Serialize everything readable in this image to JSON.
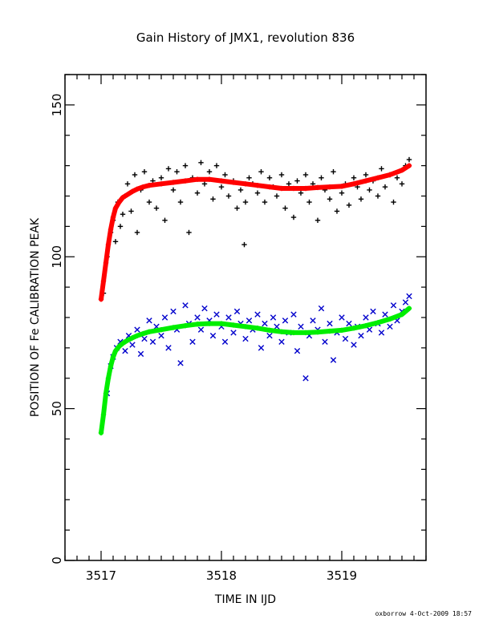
{
  "chart_data": {
    "type": "scatter",
    "title": "Gain History of JMX1, revolution 836",
    "xlabel": "TIME IN IJD",
    "ylabel": "POSITION OF Fe CALIBRATION PEAK",
    "xlim": [
      3516.7,
      3519.7
    ],
    "ylim": [
      0,
      160
    ],
    "xticks": [
      3517,
      3518,
      3519
    ],
    "yticks": [
      0,
      50,
      100,
      150
    ],
    "grid": false,
    "legend": "none",
    "series": [
      {
        "marker": "plus",
        "color": "#000000",
        "x": [
          3517.02,
          3517.05,
          3517.08,
          3517.1,
          3517.12,
          3517.14,
          3517.16,
          3517.18,
          3517.2,
          3517.22,
          3517.25,
          3517.28,
          3517.3,
          3517.33,
          3517.36,
          3517.4,
          3517.43,
          3517.46,
          3517.5,
          3517.53,
          3517.56,
          3517.6,
          3517.63,
          3517.66,
          3517.7,
          3517.73,
          3517.76,
          3517.8,
          3517.83,
          3517.86,
          3517.9,
          3517.93,
          3517.96,
          3518.0,
          3518.03,
          3518.06,
          3518.1,
          3518.13,
          3518.16,
          3518.19,
          3518.2,
          3518.23,
          3518.26,
          3518.3,
          3518.33,
          3518.36,
          3518.4,
          3518.43,
          3518.46,
          3518.5,
          3518.53,
          3518.56,
          3518.6,
          3518.63,
          3518.66,
          3518.7,
          3518.73,
          3518.76,
          3518.8,
          3518.83,
          3518.86,
          3518.9,
          3518.93,
          3518.96,
          3519.0,
          3519.03,
          3519.06,
          3519.1,
          3519.13,
          3519.16,
          3519.2,
          3519.23,
          3519.26,
          3519.3,
          3519.33,
          3519.36,
          3519.4,
          3519.43,
          3519.46,
          3519.5,
          3519.53,
          3519.56
        ],
        "values": [
          88,
          100,
          108,
          112,
          105,
          118,
          110,
          114,
          120,
          124,
          115,
          127,
          108,
          122,
          128,
          118,
          125,
          116,
          126,
          112,
          129,
          122,
          128,
          118,
          130,
          108,
          126,
          121,
          131,
          124,
          128,
          119,
          130,
          123,
          127,
          120,
          125,
          116,
          122,
          104,
          118,
          126,
          124,
          121,
          128,
          118,
          126,
          123,
          120,
          127,
          116,
          124,
          113,
          125,
          121,
          127,
          118,
          124,
          112,
          126,
          122,
          119,
          128,
          115,
          121,
          124,
          117,
          126,
          123,
          119,
          127,
          122,
          125,
          120,
          129,
          123,
          127,
          118,
          126,
          124,
          130,
          132
        ]
      },
      {
        "marker": "plus",
        "color": "#ff0000",
        "x": [
          3517.0,
          3517.02,
          3517.04,
          3517.06,
          3517.08,
          3517.1,
          3517.12,
          3517.15,
          3517.18,
          3517.22,
          3517.26,
          3517.3,
          3517.35,
          3517.4,
          3517.5,
          3517.6,
          3517.7,
          3517.8,
          3517.9,
          3518.0,
          3518.1,
          3518.2,
          3518.3,
          3518.4,
          3518.5,
          3518.6,
          3518.7,
          3518.8,
          3518.9,
          3519.0,
          3519.1,
          3519.2,
          3519.3,
          3519.4,
          3519.5,
          3519.56
        ],
        "values": [
          86,
          92,
          98,
          104,
          109,
          113,
          116,
          118,
          119.5,
          120.5,
          121.5,
          122.3,
          123,
          123.5,
          124,
          124.5,
          125,
          125.5,
          125.5,
          125,
          124.5,
          124,
          123.5,
          123,
          122.5,
          122.5,
          122.5,
          122.8,
          123,
          123.2,
          124,
          125,
          126,
          127,
          128.5,
          130
        ]
      },
      {
        "marker": "cross",
        "color": "#0000cc",
        "x": [
          3517.05,
          3517.08,
          3517.1,
          3517.13,
          3517.16,
          3517.2,
          3517.23,
          3517.26,
          3517.3,
          3517.33,
          3517.36,
          3517.4,
          3517.43,
          3517.46,
          3517.5,
          3517.53,
          3517.56,
          3517.6,
          3517.63,
          3517.66,
          3517.7,
          3517.73,
          3517.76,
          3517.8,
          3517.83,
          3517.86,
          3517.9,
          3517.93,
          3517.96,
          3518.0,
          3518.03,
          3518.06,
          3518.1,
          3518.13,
          3518.16,
          3518.2,
          3518.23,
          3518.26,
          3518.3,
          3518.33,
          3518.36,
          3518.4,
          3518.43,
          3518.46,
          3518.5,
          3518.53,
          3518.56,
          3518.6,
          3518.63,
          3518.66,
          3518.7,
          3518.73,
          3518.76,
          3518.8,
          3518.83,
          3518.86,
          3518.9,
          3518.93,
          3518.96,
          3519.0,
          3519.03,
          3519.06,
          3519.1,
          3519.13,
          3519.16,
          3519.2,
          3519.23,
          3519.26,
          3519.3,
          3519.33,
          3519.36,
          3519.4,
          3519.43,
          3519.46,
          3519.5,
          3519.53,
          3519.56
        ],
        "values": [
          55,
          64,
          67,
          70,
          72,
          69,
          74,
          71,
          76,
          68,
          73,
          79,
          72,
          77,
          74,
          80,
          70,
          82,
          76,
          65,
          84,
          78,
          72,
          80,
          76,
          83,
          79,
          74,
          81,
          77,
          72,
          80,
          75,
          82,
          78,
          73,
          79,
          76,
          81,
          70,
          78,
          74,
          80,
          77,
          72,
          79,
          75,
          81,
          69,
          77,
          60,
          74,
          79,
          76,
          83,
          72,
          78,
          66,
          75,
          80,
          73,
          78,
          71,
          77,
          74,
          80,
          76,
          82,
          78,
          75,
          81,
          77,
          84,
          79,
          82,
          85,
          87
        ]
      },
      {
        "marker": "plus",
        "color": "#00ee00",
        "x": [
          3517.0,
          3517.02,
          3517.04,
          3517.06,
          3517.08,
          3517.1,
          3517.12,
          3517.15,
          3517.18,
          3517.22,
          3517.26,
          3517.3,
          3517.35,
          3517.4,
          3517.5,
          3517.6,
          3517.7,
          3517.8,
          3517.9,
          3518.0,
          3518.1,
          3518.2,
          3518.3,
          3518.4,
          3518.5,
          3518.6,
          3518.7,
          3518.8,
          3518.9,
          3519.0,
          3519.1,
          3519.2,
          3519.3,
          3519.4,
          3519.5,
          3519.56
        ],
        "values": [
          42,
          48,
          55,
          60,
          64,
          67,
          69,
          70.5,
          71.5,
          72.5,
          73.3,
          74,
          74.7,
          75.3,
          76,
          76.7,
          77.3,
          77.8,
          78,
          78,
          77.5,
          77,
          76.5,
          75.8,
          75.3,
          75,
          75,
          75.2,
          75.5,
          75.8,
          76.5,
          77.3,
          78.3,
          79.5,
          81,
          83
        ]
      }
    ],
    "footer": "oxborrow   4-Oct-2009 18:57"
  }
}
